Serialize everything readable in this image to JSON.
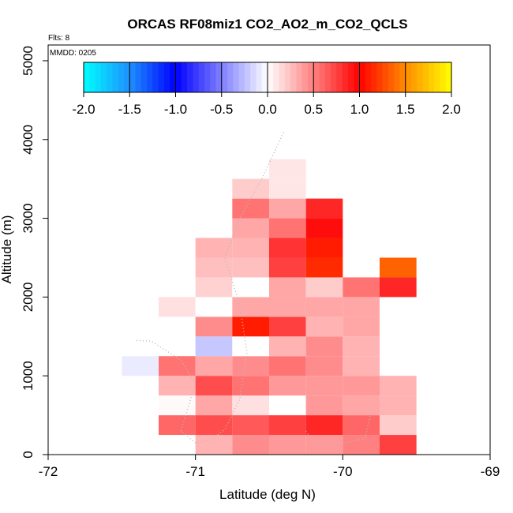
{
  "chart_data": {
    "type": "heatmap",
    "title": "ORCAS RF08miz1 CO2_AO2_m_CO2_QCLS",
    "flights_label": "Flts: 8",
    "date_label": "MMDD: 0205",
    "xlabel": "Latitude (deg N)",
    "ylabel": "Altitude (m)",
    "xlim": [
      -72,
      -69
    ],
    "ylim": [
      0,
      5200
    ],
    "x_ticks": [
      -72,
      -71,
      -70,
      -69
    ],
    "x_tick_labels": [
      "-72",
      "-71",
      "-70",
      "-69"
    ],
    "y_ticks": [
      0,
      1000,
      2000,
      3000,
      4000,
      5000
    ],
    "y_tick_labels": [
      "0",
      "1000",
      "2000",
      "3000",
      "4000",
      "5000"
    ],
    "bin_width_deg": 0.25,
    "bin_height_m": 250,
    "colorbar": {
      "min": -2.0,
      "max": 2.0,
      "ticks": [
        -2.0,
        -1.5,
        -1.0,
        -0.5,
        0.0,
        0.5,
        1.0,
        1.5,
        2.0
      ],
      "tick_labels": [
        "-2.0",
        "-1.5",
        "-1.0",
        "-0.5",
        "0.0",
        "0.5",
        "1.0",
        "1.5",
        "2.0"
      ],
      "colors": [
        "#00ffff",
        "#1e90ff",
        "#0000ff",
        "#ffffff",
        "#ff0000",
        "#ff8c00",
        "#ffff00"
      ]
    },
    "cells": [
      {
        "lat": -71.0,
        "alt": 0,
        "value": 0.3
      },
      {
        "lat": -70.75,
        "alt": 0,
        "value": 0.45
      },
      {
        "lat": -70.5,
        "alt": 0,
        "value": 0.4
      },
      {
        "lat": -70.25,
        "alt": 0,
        "value": 0.4
      },
      {
        "lat": -70.0,
        "alt": 0,
        "value": 0.5
      },
      {
        "lat": -69.75,
        "alt": 0,
        "value": 0.75
      },
      {
        "lat": -71.25,
        "alt": 250,
        "value": 0.6
      },
      {
        "lat": -71.0,
        "alt": 250,
        "value": 0.7
      },
      {
        "lat": -70.75,
        "alt": 250,
        "value": 0.65
      },
      {
        "lat": -70.5,
        "alt": 250,
        "value": 0.75
      },
      {
        "lat": -70.25,
        "alt": 250,
        "value": 0.85
      },
      {
        "lat": -70.0,
        "alt": 250,
        "value": 0.6
      },
      {
        "lat": -69.75,
        "alt": 250,
        "value": 0.2
      },
      {
        "lat": -71.25,
        "alt": 500,
        "value": 0.02
      },
      {
        "lat": -71.0,
        "alt": 500,
        "value": 0.35
      },
      {
        "lat": -70.75,
        "alt": 500,
        "value": 0.12
      },
      {
        "lat": -70.5,
        "alt": 500,
        "value": 0.0
      },
      {
        "lat": -70.25,
        "alt": 500,
        "value": 0.4
      },
      {
        "lat": -70.0,
        "alt": 500,
        "value": 0.35
      },
      {
        "lat": -69.75,
        "alt": 500,
        "value": 0.3
      },
      {
        "lat": -71.25,
        "alt": 750,
        "value": 0.3
      },
      {
        "lat": -71.0,
        "alt": 750,
        "value": 0.7
      },
      {
        "lat": -70.75,
        "alt": 750,
        "value": 0.55
      },
      {
        "lat": -70.5,
        "alt": 750,
        "value": 0.4
      },
      {
        "lat": -70.25,
        "alt": 750,
        "value": 0.4
      },
      {
        "lat": -70.0,
        "alt": 750,
        "value": 0.4
      },
      {
        "lat": -69.75,
        "alt": 750,
        "value": 0.3
      },
      {
        "lat": -71.5,
        "alt": 1000,
        "value": -0.08
      },
      {
        "lat": -71.25,
        "alt": 1000,
        "value": 0.55
      },
      {
        "lat": -71.0,
        "alt": 1000,
        "value": 0.35
      },
      {
        "lat": -70.75,
        "alt": 1000,
        "value": 0.45
      },
      {
        "lat": -70.5,
        "alt": 1000,
        "value": 0.55
      },
      {
        "lat": -70.25,
        "alt": 1000,
        "value": 0.45
      },
      {
        "lat": -70.0,
        "alt": 1000,
        "value": 0.3
      },
      {
        "lat": -71.0,
        "alt": 1250,
        "value": -0.22
      },
      {
        "lat": -70.75,
        "alt": 1250,
        "value": 0.0
      },
      {
        "lat": -70.5,
        "alt": 1250,
        "value": 0.3
      },
      {
        "lat": -70.25,
        "alt": 1250,
        "value": 0.45
      },
      {
        "lat": -70.0,
        "alt": 1250,
        "value": 0.3
      },
      {
        "lat": -71.0,
        "alt": 1500,
        "value": 0.45
      },
      {
        "lat": -70.75,
        "alt": 1500,
        "value": 1.1
      },
      {
        "lat": -70.5,
        "alt": 1500,
        "value": 0.75
      },
      {
        "lat": -70.25,
        "alt": 1500,
        "value": 0.3
      },
      {
        "lat": -70.0,
        "alt": 1500,
        "value": 0.35
      },
      {
        "lat": -71.25,
        "alt": 1750,
        "value": 0.12
      },
      {
        "lat": -71.0,
        "alt": 1750,
        "value": 0.0
      },
      {
        "lat": -70.75,
        "alt": 1750,
        "value": 0.35
      },
      {
        "lat": -70.5,
        "alt": 1750,
        "value": 0.35
      },
      {
        "lat": -70.25,
        "alt": 1750,
        "value": 0.35
      },
      {
        "lat": -70.0,
        "alt": 1750,
        "value": 0.35
      },
      {
        "lat": -71.0,
        "alt": 2000,
        "value": 0.18
      },
      {
        "lat": -70.75,
        "alt": 2000,
        "value": 0.0
      },
      {
        "lat": -70.5,
        "alt": 2000,
        "value": 0.35
      },
      {
        "lat": -70.25,
        "alt": 2000,
        "value": 0.2
      },
      {
        "lat": -70.0,
        "alt": 2000,
        "value": 0.55
      },
      {
        "lat": -69.75,
        "alt": 2000,
        "value": 0.85
      },
      {
        "lat": -71.0,
        "alt": 2250,
        "value": 0.25
      },
      {
        "lat": -70.75,
        "alt": 2250,
        "value": 0.25
      },
      {
        "lat": -70.5,
        "alt": 2250,
        "value": 0.75
      },
      {
        "lat": -70.25,
        "alt": 2250,
        "value": 1.15
      },
      {
        "lat": -69.75,
        "alt": 2250,
        "value": 1.35
      },
      {
        "lat": -71.0,
        "alt": 2500,
        "value": 0.3
      },
      {
        "lat": -70.75,
        "alt": 2500,
        "value": 0.3
      },
      {
        "lat": -70.5,
        "alt": 2500,
        "value": 0.8
      },
      {
        "lat": -70.25,
        "alt": 2500,
        "value": 1.1
      },
      {
        "lat": -70.75,
        "alt": 2750,
        "value": 0.35
      },
      {
        "lat": -70.5,
        "alt": 2750,
        "value": 0.55
      },
      {
        "lat": -70.25,
        "alt": 2750,
        "value": 0.95
      },
      {
        "lat": -70.75,
        "alt": 3000,
        "value": 0.55
      },
      {
        "lat": -70.5,
        "alt": 3000,
        "value": 0.35
      },
      {
        "lat": -70.25,
        "alt": 3000,
        "value": 0.85
      },
      {
        "lat": -70.75,
        "alt": 3250,
        "value": 0.2
      },
      {
        "lat": -70.5,
        "alt": 3250,
        "value": 0.1
      },
      {
        "lat": -70.5,
        "alt": 3500,
        "value": 0.1
      }
    ]
  }
}
